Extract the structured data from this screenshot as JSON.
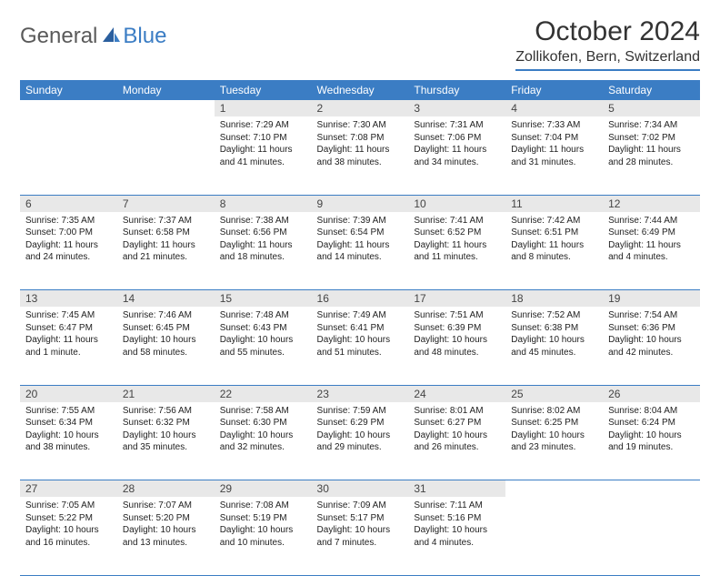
{
  "logo": {
    "general": "General",
    "blue": "Blue"
  },
  "title": "October 2024",
  "location": "Zollikofen, Bern, Switzerland",
  "colors": {
    "header_bg": "#3b7dc4",
    "header_text": "#ffffff",
    "daynum_bg": "#e8e8e8",
    "border": "#3b7dc4",
    "logo_gray": "#5a5a5a",
    "logo_blue": "#3b7dc4"
  },
  "weekdays": [
    "Sunday",
    "Monday",
    "Tuesday",
    "Wednesday",
    "Thursday",
    "Friday",
    "Saturday"
  ],
  "weeks": [
    {
      "nums": [
        "",
        "",
        "1",
        "2",
        "3",
        "4",
        "5"
      ],
      "cells": [
        null,
        null,
        {
          "sunrise": "Sunrise: 7:29 AM",
          "sunset": "Sunset: 7:10 PM",
          "daylight": "Daylight: 11 hours and 41 minutes."
        },
        {
          "sunrise": "Sunrise: 7:30 AM",
          "sunset": "Sunset: 7:08 PM",
          "daylight": "Daylight: 11 hours and 38 minutes."
        },
        {
          "sunrise": "Sunrise: 7:31 AM",
          "sunset": "Sunset: 7:06 PM",
          "daylight": "Daylight: 11 hours and 34 minutes."
        },
        {
          "sunrise": "Sunrise: 7:33 AM",
          "sunset": "Sunset: 7:04 PM",
          "daylight": "Daylight: 11 hours and 31 minutes."
        },
        {
          "sunrise": "Sunrise: 7:34 AM",
          "sunset": "Sunset: 7:02 PM",
          "daylight": "Daylight: 11 hours and 28 minutes."
        }
      ]
    },
    {
      "nums": [
        "6",
        "7",
        "8",
        "9",
        "10",
        "11",
        "12"
      ],
      "cells": [
        {
          "sunrise": "Sunrise: 7:35 AM",
          "sunset": "Sunset: 7:00 PM",
          "daylight": "Daylight: 11 hours and 24 minutes."
        },
        {
          "sunrise": "Sunrise: 7:37 AM",
          "sunset": "Sunset: 6:58 PM",
          "daylight": "Daylight: 11 hours and 21 minutes."
        },
        {
          "sunrise": "Sunrise: 7:38 AM",
          "sunset": "Sunset: 6:56 PM",
          "daylight": "Daylight: 11 hours and 18 minutes."
        },
        {
          "sunrise": "Sunrise: 7:39 AM",
          "sunset": "Sunset: 6:54 PM",
          "daylight": "Daylight: 11 hours and 14 minutes."
        },
        {
          "sunrise": "Sunrise: 7:41 AM",
          "sunset": "Sunset: 6:52 PM",
          "daylight": "Daylight: 11 hours and 11 minutes."
        },
        {
          "sunrise": "Sunrise: 7:42 AM",
          "sunset": "Sunset: 6:51 PM",
          "daylight": "Daylight: 11 hours and 8 minutes."
        },
        {
          "sunrise": "Sunrise: 7:44 AM",
          "sunset": "Sunset: 6:49 PM",
          "daylight": "Daylight: 11 hours and 4 minutes."
        }
      ]
    },
    {
      "nums": [
        "13",
        "14",
        "15",
        "16",
        "17",
        "18",
        "19"
      ],
      "cells": [
        {
          "sunrise": "Sunrise: 7:45 AM",
          "sunset": "Sunset: 6:47 PM",
          "daylight": "Daylight: 11 hours and 1 minute."
        },
        {
          "sunrise": "Sunrise: 7:46 AM",
          "sunset": "Sunset: 6:45 PM",
          "daylight": "Daylight: 10 hours and 58 minutes."
        },
        {
          "sunrise": "Sunrise: 7:48 AM",
          "sunset": "Sunset: 6:43 PM",
          "daylight": "Daylight: 10 hours and 55 minutes."
        },
        {
          "sunrise": "Sunrise: 7:49 AM",
          "sunset": "Sunset: 6:41 PM",
          "daylight": "Daylight: 10 hours and 51 minutes."
        },
        {
          "sunrise": "Sunrise: 7:51 AM",
          "sunset": "Sunset: 6:39 PM",
          "daylight": "Daylight: 10 hours and 48 minutes."
        },
        {
          "sunrise": "Sunrise: 7:52 AM",
          "sunset": "Sunset: 6:38 PM",
          "daylight": "Daylight: 10 hours and 45 minutes."
        },
        {
          "sunrise": "Sunrise: 7:54 AM",
          "sunset": "Sunset: 6:36 PM",
          "daylight": "Daylight: 10 hours and 42 minutes."
        }
      ]
    },
    {
      "nums": [
        "20",
        "21",
        "22",
        "23",
        "24",
        "25",
        "26"
      ],
      "cells": [
        {
          "sunrise": "Sunrise: 7:55 AM",
          "sunset": "Sunset: 6:34 PM",
          "daylight": "Daylight: 10 hours and 38 minutes."
        },
        {
          "sunrise": "Sunrise: 7:56 AM",
          "sunset": "Sunset: 6:32 PM",
          "daylight": "Daylight: 10 hours and 35 minutes."
        },
        {
          "sunrise": "Sunrise: 7:58 AM",
          "sunset": "Sunset: 6:30 PM",
          "daylight": "Daylight: 10 hours and 32 minutes."
        },
        {
          "sunrise": "Sunrise: 7:59 AM",
          "sunset": "Sunset: 6:29 PM",
          "daylight": "Daylight: 10 hours and 29 minutes."
        },
        {
          "sunrise": "Sunrise: 8:01 AM",
          "sunset": "Sunset: 6:27 PM",
          "daylight": "Daylight: 10 hours and 26 minutes."
        },
        {
          "sunrise": "Sunrise: 8:02 AM",
          "sunset": "Sunset: 6:25 PM",
          "daylight": "Daylight: 10 hours and 23 minutes."
        },
        {
          "sunrise": "Sunrise: 8:04 AM",
          "sunset": "Sunset: 6:24 PM",
          "daylight": "Daylight: 10 hours and 19 minutes."
        }
      ]
    },
    {
      "nums": [
        "27",
        "28",
        "29",
        "30",
        "31",
        "",
        ""
      ],
      "cells": [
        {
          "sunrise": "Sunrise: 7:05 AM",
          "sunset": "Sunset: 5:22 PM",
          "daylight": "Daylight: 10 hours and 16 minutes."
        },
        {
          "sunrise": "Sunrise: 7:07 AM",
          "sunset": "Sunset: 5:20 PM",
          "daylight": "Daylight: 10 hours and 13 minutes."
        },
        {
          "sunrise": "Sunrise: 7:08 AM",
          "sunset": "Sunset: 5:19 PM",
          "daylight": "Daylight: 10 hours and 10 minutes."
        },
        {
          "sunrise": "Sunrise: 7:09 AM",
          "sunset": "Sunset: 5:17 PM",
          "daylight": "Daylight: 10 hours and 7 minutes."
        },
        {
          "sunrise": "Sunrise: 7:11 AM",
          "sunset": "Sunset: 5:16 PM",
          "daylight": "Daylight: 10 hours and 4 minutes."
        },
        null,
        null
      ]
    }
  ]
}
